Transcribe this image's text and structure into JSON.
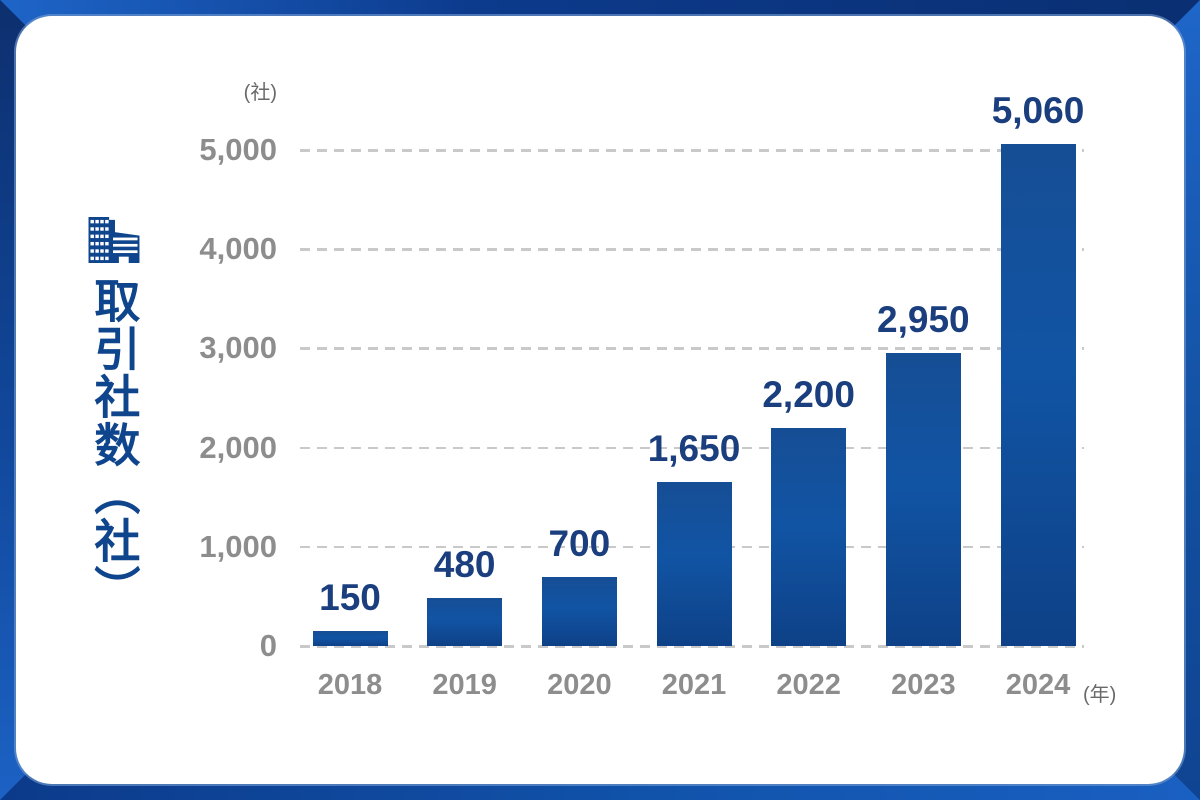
{
  "chart_data": {
    "type": "bar",
    "title": "",
    "axis_title_vertical": "取引社数（社）",
    "y_unit": "(社)",
    "x_unit": "(年)",
    "categories": [
      "2018",
      "2019",
      "2020",
      "2021",
      "2022",
      "2023",
      "2024"
    ],
    "values": [
      150,
      480,
      700,
      1650,
      2200,
      2950,
      5060
    ],
    "value_labels": [
      "150",
      "480",
      "700",
      "1,650",
      "2,200",
      "2,950",
      "5,060"
    ],
    "y_ticks": [
      {
        "value": 0,
        "label": "0"
      },
      {
        "value": 1000,
        "label": "1,000"
      },
      {
        "value": 2000,
        "label": "2,000"
      },
      {
        "value": 3000,
        "label": "3,000"
      },
      {
        "value": 4000,
        "label": "4,000"
      },
      {
        "value": 5000,
        "label": "5,000"
      }
    ],
    "ylim": [
      0,
      5000
    ],
    "grid": {
      "horizontal": true,
      "style": "dashed"
    },
    "legend": "none",
    "colors": {
      "bar": "#11509f",
      "value_label": "#1a3e7e",
      "tick_label": "#8d8d8d",
      "unit_label": "#696969",
      "axis_title": "#0f458c",
      "gridline": "#c9c9c9"
    }
  }
}
